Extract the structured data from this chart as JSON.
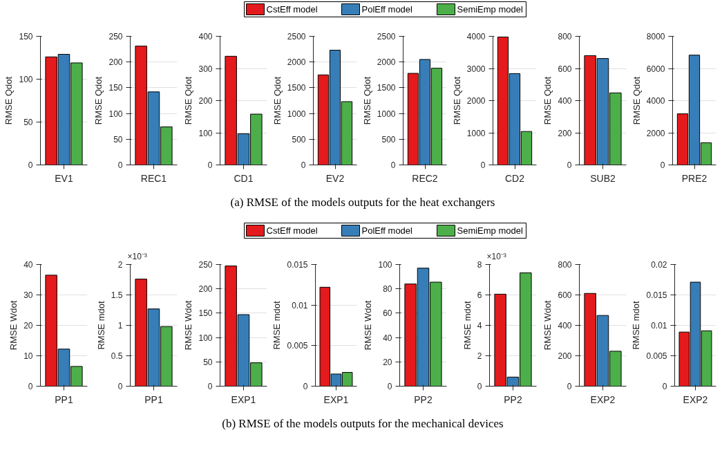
{
  "chart_data": [
    {
      "type": "bar",
      "categories": [
        "EV1"
      ],
      "ylabel": "RMSE Qdot",
      "ylim": [
        0,
        150
      ],
      "yticks": [
        0,
        50,
        100,
        150
      ],
      "grid": "y",
      "legend": "top",
      "annotations": [
        "(a) RMSE of the models outputs for the heat exchangers"
      ],
      "series": [
        {
          "name": "CstEff model",
          "color": "#e41a1c",
          "values": [
            126
          ]
        },
        {
          "name": "PolEff model",
          "color": "#377eb8",
          "values": [
            129
          ]
        },
        {
          "name": "SemiEmp model",
          "color": "#4daf4a",
          "values": [
            119
          ]
        }
      ]
    },
    {
      "type": "bar",
      "categories": [
        "REC1"
      ],
      "ylabel": "RMSE Qdot",
      "ylim": [
        0,
        250
      ],
      "yticks": [
        0,
        50,
        100,
        150,
        200,
        250
      ],
      "grid": "y",
      "series": [
        {
          "color": "#e41a1c",
          "values": [
            231
          ]
        },
        {
          "color": "#377eb8",
          "values": [
            142
          ]
        },
        {
          "color": "#4daf4a",
          "values": [
            74
          ]
        }
      ]
    },
    {
      "type": "bar",
      "categories": [
        "CD1"
      ],
      "ylabel": "RMSE Qdot",
      "ylim": [
        0,
        400
      ],
      "yticks": [
        0,
        100,
        200,
        300,
        400
      ],
      "grid": "y",
      "series": [
        {
          "color": "#e41a1c",
          "values": [
            338
          ]
        },
        {
          "color": "#377eb8",
          "values": [
            97
          ]
        },
        {
          "color": "#4daf4a",
          "values": [
            158
          ]
        }
      ]
    },
    {
      "type": "bar",
      "categories": [
        "EV2"
      ],
      "ylabel": "RMSE Qdot",
      "ylim": [
        0,
        2500
      ],
      "yticks": [
        0,
        500,
        1000,
        1500,
        2000,
        2500
      ],
      "grid": "y",
      "series": [
        {
          "color": "#e41a1c",
          "values": [
            1750
          ]
        },
        {
          "color": "#377eb8",
          "values": [
            2230
          ]
        },
        {
          "color": "#4daf4a",
          "values": [
            1230
          ]
        }
      ]
    },
    {
      "type": "bar",
      "categories": [
        "REC2"
      ],
      "ylabel": "RMSE Qdot",
      "ylim": [
        0,
        2500
      ],
      "yticks": [
        0,
        500,
        1000,
        1500,
        2000,
        2500
      ],
      "grid": "y",
      "series": [
        {
          "color": "#e41a1c",
          "values": [
            1780
          ]
        },
        {
          "color": "#377eb8",
          "values": [
            2050
          ]
        },
        {
          "color": "#4daf4a",
          "values": [
            1880
          ]
        }
      ]
    },
    {
      "type": "bar",
      "categories": [
        "CD2"
      ],
      "ylabel": "RMSE Qdot",
      "ylim": [
        0,
        4000
      ],
      "yticks": [
        0,
        1000,
        2000,
        3000,
        4000
      ],
      "grid": "y",
      "series": [
        {
          "color": "#e41a1c",
          "values": [
            3980
          ]
        },
        {
          "color": "#377eb8",
          "values": [
            2840
          ]
        },
        {
          "color": "#4daf4a",
          "values": [
            1040
          ]
        }
      ]
    },
    {
      "type": "bar",
      "categories": [
        "SUB2"
      ],
      "ylabel": "RMSE Qdot",
      "ylim": [
        0,
        800
      ],
      "yticks": [
        0,
        200,
        400,
        600,
        800
      ],
      "grid": "y",
      "series": [
        {
          "color": "#e41a1c",
          "values": [
            680
          ]
        },
        {
          "color": "#377eb8",
          "values": [
            662
          ]
        },
        {
          "color": "#4daf4a",
          "values": [
            448
          ]
        }
      ]
    },
    {
      "type": "bar",
      "categories": [
        "PRE2"
      ],
      "ylabel": "RMSE Qdot",
      "ylim": [
        0,
        8000
      ],
      "yticks": [
        0,
        2000,
        4000,
        6000,
        8000
      ],
      "grid": "y",
      "series": [
        {
          "color": "#e41a1c",
          "values": [
            3180
          ]
        },
        {
          "color": "#377eb8",
          "values": [
            6830
          ]
        },
        {
          "color": "#4daf4a",
          "values": [
            1380
          ]
        }
      ]
    },
    {
      "type": "bar",
      "categories": [
        "PP1"
      ],
      "ylabel": "RMSE Wdot",
      "ylim": [
        0,
        40
      ],
      "yticks": [
        0,
        10,
        20,
        30,
        40
      ],
      "grid": "y",
      "legend": "top",
      "annotations": [
        "(b) RMSE of the models outputs for the mechanical devices"
      ],
      "series": [
        {
          "name": "CstEff model",
          "color": "#e41a1c",
          "values": [
            36.5
          ]
        },
        {
          "name": "PolEff model",
          "color": "#377eb8",
          "values": [
            12.2
          ]
        },
        {
          "name": "SemiEmp model",
          "color": "#4daf4a",
          "values": [
            6.5
          ]
        }
      ]
    },
    {
      "type": "bar",
      "categories": [
        "PP1"
      ],
      "ylabel": "RMSE mdot",
      "ylim": [
        0,
        2
      ],
      "yticks": [
        0,
        0.5,
        1,
        1.5,
        2
      ],
      "grid": "y",
      "annotations": [
        "×10⁻³"
      ],
      "series": [
        {
          "color": "#e41a1c",
          "values": [
            1.76
          ]
        },
        {
          "color": "#377eb8",
          "values": [
            1.27
          ]
        },
        {
          "color": "#4daf4a",
          "values": [
            0.98
          ]
        }
      ]
    },
    {
      "type": "bar",
      "categories": [
        "EXP1"
      ],
      "ylabel": "RMSE Wdot",
      "ylim": [
        0,
        250
      ],
      "yticks": [
        0,
        50,
        100,
        150,
        200,
        250
      ],
      "grid": "y",
      "series": [
        {
          "color": "#e41a1c",
          "values": [
            247
          ]
        },
        {
          "color": "#377eb8",
          "values": [
            147
          ]
        },
        {
          "color": "#4daf4a",
          "values": [
            48
          ]
        }
      ]
    },
    {
      "type": "bar",
      "categories": [
        "EXP1"
      ],
      "ylabel": "RMSE mdot",
      "ylim": [
        0,
        0.015
      ],
      "yticks": [
        0,
        0.005,
        0.01,
        0.015
      ],
      "grid": "y",
      "series": [
        {
          "color": "#e41a1c",
          "values": [
            0.0122
          ]
        },
        {
          "color": "#377eb8",
          "values": [
            0.0015
          ]
        },
        {
          "color": "#4daf4a",
          "values": [
            0.0017
          ]
        }
      ]
    },
    {
      "type": "bar",
      "categories": [
        "PP2"
      ],
      "ylabel": "RMSE Wdot",
      "ylim": [
        0,
        100
      ],
      "yticks": [
        0,
        20,
        40,
        60,
        80,
        100
      ],
      "grid": "y",
      "series": [
        {
          "color": "#e41a1c",
          "values": [
            84
          ]
        },
        {
          "color": "#377eb8",
          "values": [
            97
          ]
        },
        {
          "color": "#4daf4a",
          "values": [
            85.5
          ]
        }
      ]
    },
    {
      "type": "bar",
      "categories": [
        "PP2"
      ],
      "ylabel": "RMSE mdot",
      "ylim": [
        0,
        8
      ],
      "yticks": [
        0,
        2,
        4,
        6,
        8
      ],
      "grid": "y",
      "annotations": [
        "×10⁻³"
      ],
      "series": [
        {
          "color": "#e41a1c",
          "values": [
            6.05
          ]
        },
        {
          "color": "#377eb8",
          "values": [
            0.6
          ]
        },
        {
          "color": "#4daf4a",
          "values": [
            7.45
          ]
        }
      ]
    },
    {
      "type": "bar",
      "categories": [
        "EXP2"
      ],
      "ylabel": "RMSE Wdot",
      "ylim": [
        0,
        800
      ],
      "yticks": [
        0,
        200,
        400,
        600,
        800
      ],
      "grid": "y",
      "series": [
        {
          "color": "#e41a1c",
          "values": [
            610
          ]
        },
        {
          "color": "#377eb8",
          "values": [
            465
          ]
        },
        {
          "color": "#4daf4a",
          "values": [
            230
          ]
        }
      ]
    },
    {
      "type": "bar",
      "categories": [
        "EXP2"
      ],
      "ylabel": "RMSE mdot",
      "ylim": [
        0,
        0.02
      ],
      "yticks": [
        0,
        0.005,
        0.01,
        0.015,
        0.02
      ],
      "grid": "y",
      "series": [
        {
          "color": "#e41a1c",
          "values": [
            0.0089
          ]
        },
        {
          "color": "#377eb8",
          "values": [
            0.0171
          ]
        },
        {
          "color": "#4daf4a",
          "values": [
            0.0091
          ]
        }
      ]
    }
  ]
}
